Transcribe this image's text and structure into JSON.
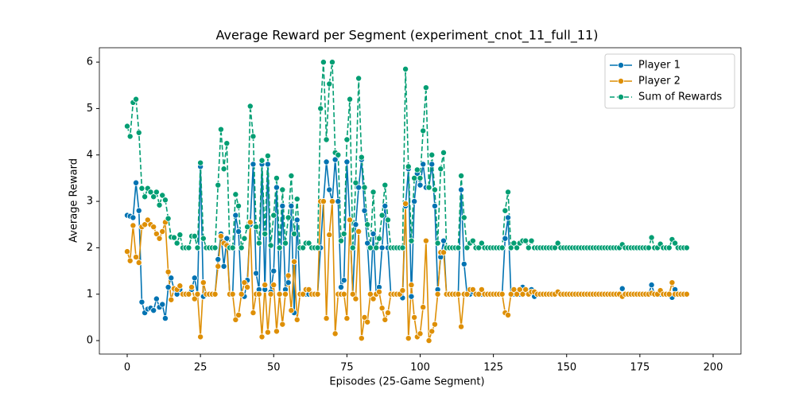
{
  "chart_data": {
    "type": "line",
    "title": "Average Reward per Segment (experiment_cnot_11_full_11)",
    "xlabel": "Episodes (25-Game Segment)",
    "ylabel": "Average Reward",
    "x": [
      0,
      1,
      2,
      3,
      4,
      5,
      6,
      7,
      8,
      9,
      10,
      11,
      12,
      13,
      14,
      15,
      16,
      17,
      18,
      19,
      20,
      21,
      22,
      23,
      24,
      25,
      26,
      27,
      28,
      29,
      30,
      31,
      32,
      33,
      34,
      35,
      36,
      37,
      38,
      39,
      40,
      41,
      42,
      43,
      44,
      45,
      46,
      47,
      48,
      49,
      50,
      51,
      52,
      53,
      54,
      55,
      56,
      57,
      58,
      59,
      60,
      61,
      62,
      63,
      64,
      65,
      66,
      67,
      68,
      69,
      70,
      71,
      72,
      73,
      74,
      75,
      76,
      77,
      78,
      79,
      80,
      81,
      82,
      83,
      84,
      85,
      86,
      87,
      88,
      89,
      90,
      91,
      92,
      93,
      94,
      95,
      96,
      97,
      98,
      99,
      100,
      101,
      102,
      103,
      104,
      105,
      106,
      107,
      108,
      109,
      110,
      111,
      112,
      113,
      114,
      115,
      116,
      117,
      118,
      119,
      120,
      121,
      122,
      123,
      124,
      125,
      126,
      127,
      128,
      129,
      130,
      131,
      132,
      133,
      134,
      135,
      136,
      137,
      138,
      139,
      140,
      141,
      142,
      143,
      144,
      145,
      146,
      147,
      148,
      149,
      150,
      151,
      152,
      153,
      154,
      155,
      156,
      157,
      158,
      159,
      160,
      161,
      162,
      163,
      164,
      165,
      166,
      167,
      168,
      169,
      170,
      171,
      172,
      173,
      174,
      175,
      176,
      177,
      178,
      179,
      180,
      181,
      182,
      183,
      184,
      185,
      186,
      187,
      188,
      189,
      190,
      191
    ],
    "series": [
      {
        "name": "Player 1",
        "color": "#0173b2",
        "linestyle": "solid",
        "values": [
          2.7,
          2.68,
          2.65,
          3.4,
          2.8,
          0.83,
          0.6,
          0.68,
          0.7,
          0.65,
          0.9,
          0.72,
          0.78,
          0.48,
          1.15,
          1.35,
          1.1,
          1.0,
          1.1,
          1.0,
          1.0,
          1.0,
          1.1,
          1.35,
          1.0,
          3.75,
          0.95,
          1.0,
          1.0,
          1.0,
          1.0,
          1.75,
          2.3,
          1.6,
          2.2,
          1.0,
          1.0,
          2.7,
          2.35,
          1.0,
          0.95,
          1.3,
          2.5,
          3.8,
          1.45,
          1.1,
          3.8,
          1.1,
          3.8,
          1.05,
          1.5,
          3.3,
          1.0,
          2.9,
          1.1,
          1.25,
          2.9,
          0.6,
          2.6,
          1.0,
          1.0,
          1.0,
          1.0,
          1.0,
          1.0,
          1.0,
          2.0,
          3.0,
          3.85,
          3.25,
          3.0,
          3.9,
          3.0,
          1.15,
          1.3,
          3.85,
          2.6,
          1.0,
          2.5,
          3.3,
          3.9,
          2.8,
          2.1,
          1.0,
          2.3,
          1.0,
          1.15,
          2.0,
          2.9,
          2.0,
          1.0,
          1.0,
          1.0,
          1.0,
          0.92,
          2.9,
          3.7,
          0.95,
          3.0,
          3.6,
          3.35,
          3.8,
          3.3,
          3.3,
          3.8,
          2.9,
          1.1,
          1.8,
          2.15,
          1.0,
          1.0,
          1.0,
          1.0,
          1.0,
          3.25,
          1.65,
          1.0,
          1.0,
          1.05,
          1.0,
          1.0,
          1.0,
          1.0,
          1.0,
          1.0,
          1.0,
          1.0,
          1.0,
          1.0,
          2.2,
          2.65,
          1.0,
          1.0,
          1.0,
          1.0,
          1.15,
          1.05,
          1.0,
          1.1,
          0.95,
          1,
          1,
          1,
          1,
          1,
          1,
          1,
          1.05,
          1,
          1,
          1,
          1,
          1,
          1,
          1,
          1,
          1,
          1,
          1,
          1,
          1,
          1,
          1,
          1,
          1,
          1,
          1,
          1,
          1,
          1.12,
          1,
          1,
          1,
          1,
          1,
          1,
          1,
          1,
          1,
          1.2,
          1,
          1,
          1,
          1,
          1,
          1,
          0.93,
          1.1,
          1,
          1,
          1,
          1
        ]
      },
      {
        "name": "Player 2",
        "color": "#de8f05",
        "linestyle": "solid",
        "values": [
          1.92,
          1.72,
          2.48,
          1.8,
          1.68,
          2.45,
          2.5,
          2.6,
          2.5,
          2.45,
          2.3,
          2.2,
          2.35,
          2.55,
          1.48,
          0.88,
          1.12,
          1.1,
          1.18,
          1.0,
          1.0,
          1.0,
          1.15,
          0.9,
          1.0,
          0.08,
          1.25,
          1.0,
          1.0,
          1.0,
          1.0,
          1.6,
          2.25,
          2.1,
          2.05,
          1.0,
          1.0,
          0.45,
          0.55,
          1.0,
          1.25,
          1.15,
          2.55,
          0.6,
          1.0,
          1.0,
          0.08,
          1.2,
          0.18,
          1.0,
          1.2,
          0.2,
          1.0,
          0.35,
          1.0,
          1.4,
          0.65,
          1.7,
          0.45,
          1.0,
          1.0,
          1.1,
          1.1,
          1.0,
          1.0,
          1.0,
          3.0,
          3.0,
          0.48,
          2.28,
          3.0,
          0.15,
          1.0,
          1.0,
          1.0,
          0.48,
          2.6,
          1.0,
          0.9,
          2.35,
          0.05,
          0.5,
          0.4,
          1.0,
          0.9,
          1.0,
          1.05,
          0.7,
          0.45,
          0.6,
          1.0,
          1.0,
          1.0,
          1.0,
          1.08,
          2.95,
          0.05,
          1.2,
          0.5,
          0.08,
          0.15,
          0.72,
          2.15,
          0.0,
          0.2,
          0.35,
          1.0,
          1.9,
          1.9,
          1.0,
          1,
          1,
          1,
          1,
          0.3,
          1.0,
          1.0,
          1.1,
          1.1,
          1.0,
          1.0,
          1.1,
          1,
          1,
          1,
          1,
          1,
          1,
          1,
          0.6,
          0.55,
          1.0,
          1.1,
          1.0,
          1.1,
          1.0,
          1.1,
          1.0,
          1.05,
          1.05,
          1,
          1,
          1,
          1,
          1,
          1,
          1,
          1.05,
          1,
          1,
          1,
          1,
          1,
          1,
          1,
          1,
          1,
          1,
          1,
          1,
          1,
          1,
          1,
          1,
          1,
          1,
          1,
          1,
          1,
          0.95,
          1,
          1,
          1,
          1,
          1,
          1,
          1,
          1,
          1,
          1.02,
          1,
          1,
          1.08,
          1,
          1,
          1,
          1.25,
          1.0,
          1,
          1,
          1,
          1
        ]
      },
      {
        "name": "Sum of Rewards",
        "color": "#029e73",
        "linestyle": "dashed",
        "values": [
          4.62,
          4.4,
          5.13,
          5.2,
          4.48,
          3.28,
          3.1,
          3.28,
          3.2,
          3.1,
          3.2,
          2.92,
          3.13,
          3.03,
          2.63,
          2.23,
          2.22,
          2.1,
          2.28,
          2.0,
          2.0,
          2.0,
          2.25,
          2.25,
          2.0,
          3.83,
          2.2,
          2.0,
          2.0,
          2.0,
          2.0,
          3.35,
          4.55,
          3.7,
          4.25,
          2.0,
          2.0,
          3.15,
          2.9,
          2.0,
          2.2,
          2.45,
          5.05,
          4.4,
          2.45,
          2.1,
          3.88,
          2.3,
          3.98,
          2.05,
          2.7,
          3.5,
          2.0,
          3.25,
          2.1,
          2.65,
          3.55,
          2.3,
          3.05,
          2.0,
          2.0,
          2.1,
          2.1,
          2.0,
          2.0,
          2.0,
          5.0,
          6.0,
          4.33,
          5.53,
          6.0,
          4.05,
          4.0,
          2.15,
          2.3,
          4.33,
          5.2,
          2.0,
          3.4,
          5.65,
          3.95,
          3.3,
          2.5,
          2.0,
          3.2,
          2.0,
          2.2,
          2.7,
          3.35,
          2.6,
          2.0,
          2.0,
          2.0,
          2.0,
          2.0,
          5.85,
          3.75,
          2.15,
          3.5,
          3.68,
          3.5,
          4.52,
          5.45,
          3.3,
          4.0,
          3.25,
          2.1,
          3.7,
          4.05,
          2.0,
          2,
          2,
          2,
          2,
          3.55,
          2.65,
          2.0,
          2.1,
          2.15,
          2.0,
          2.0,
          2.1,
          2,
          2,
          2,
          2,
          2,
          2,
          2,
          2.8,
          3.2,
          2.0,
          2.1,
          2.0,
          2.1,
          2.15,
          2.15,
          2.0,
          2.15,
          2.0,
          2,
          2,
          2,
          2,
          2,
          2,
          2,
          2.1,
          2,
          2,
          2,
          2,
          2,
          2,
          2,
          2,
          2,
          2,
          2,
          2,
          2,
          2,
          2,
          2,
          2,
          2,
          2,
          2,
          2,
          2.07,
          2,
          2,
          2,
          2,
          2,
          2,
          2,
          2,
          2,
          2.22,
          2,
          2,
          2.08,
          2,
          2,
          2,
          2.18,
          2.1,
          2,
          2,
          2,
          2
        ]
      }
    ],
    "xlim": [
      -9.5,
      209.5
    ],
    "xticks": [
      0,
      25,
      50,
      75,
      100,
      125,
      150,
      175,
      200
    ],
    "ylim": [
      -0.29,
      6.31
    ],
    "yticks": [
      0,
      1,
      2,
      3,
      4,
      5,
      6
    ],
    "legend": "upper right",
    "grid": false
  }
}
